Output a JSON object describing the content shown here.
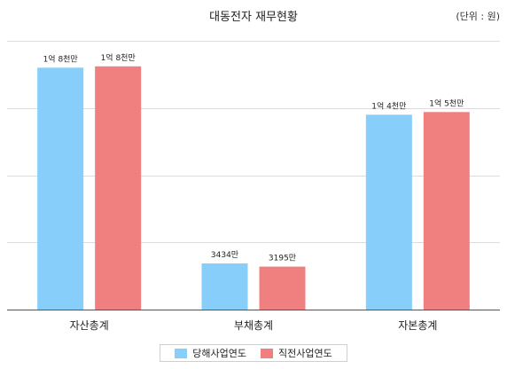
{
  "chart_data": {
    "type": "bar",
    "title": "대동전자 재무현황",
    "unit_label": "(단위 : 원)",
    "categories": [
      "자산총계",
      "부채총계",
      "자본총계"
    ],
    "ylim": [
      0,
      200000000
    ],
    "grid": true,
    "legend_position": "bottom",
    "series": [
      {
        "name": "당해사업연도",
        "color": "#87cefa",
        "values": [
          180000000,
          34340000,
          145000000
        ],
        "labels": [
          "1억 8천만",
          "3434만",
          "1억 4천만"
        ]
      },
      {
        "name": "직전사업연도",
        "color": "#f08080",
        "values": [
          181000000,
          31950000,
          147000000
        ],
        "labels": [
          "1억 8천만",
          "3195만",
          "1억 5천만"
        ]
      }
    ]
  }
}
